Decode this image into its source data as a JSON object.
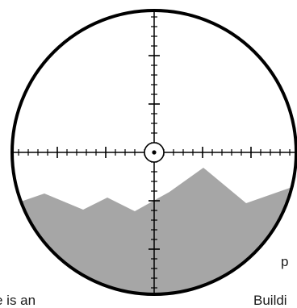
{
  "scope": {
    "stroke_color": "#000000",
    "terrain_color": "#a6a6a6",
    "background_color": "#ffffff"
  },
  "text_fragments": {
    "left_bottom": "e is an",
    "right_middle": "p",
    "right_bottom": "Buildi"
  },
  "icons": {
    "center_dot": "crosshair-center-dot-icon"
  }
}
